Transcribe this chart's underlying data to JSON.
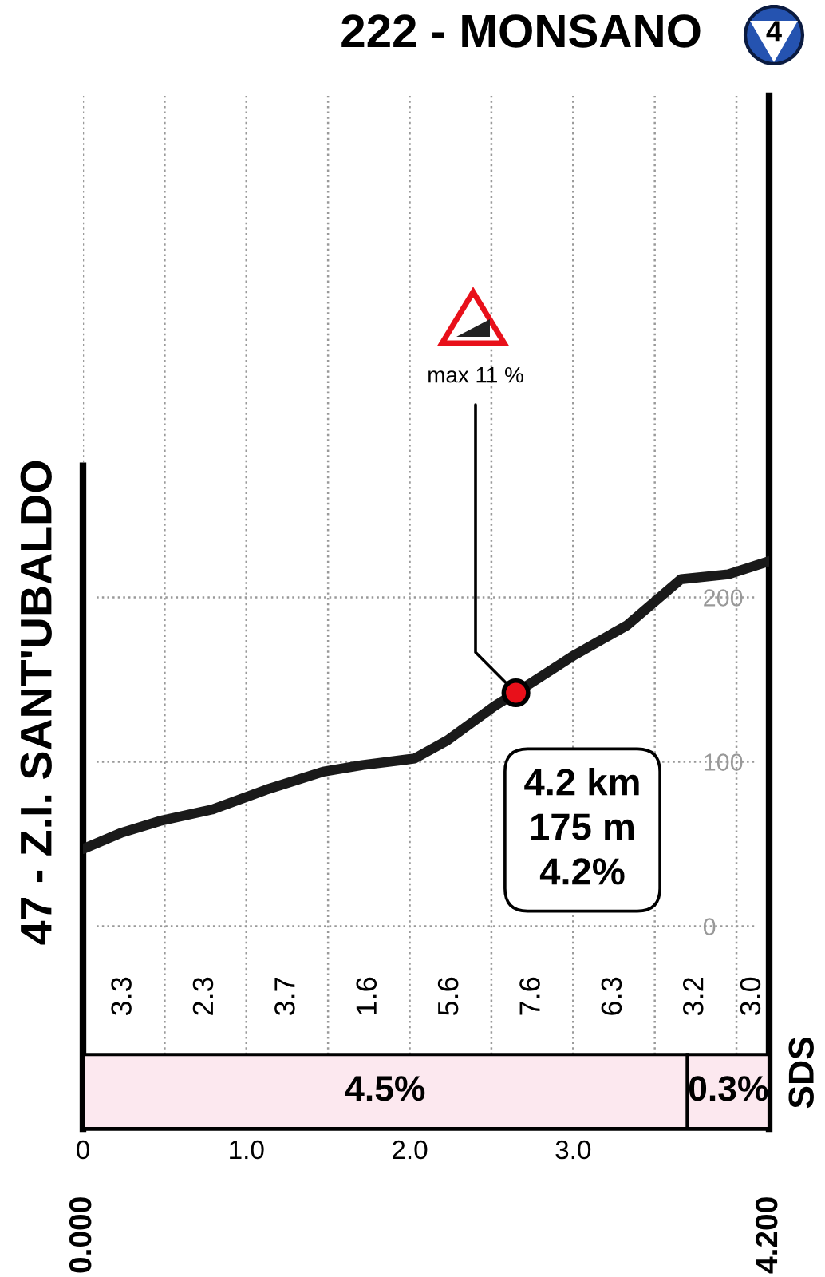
{
  "chart_data": {
    "type": "line",
    "color": "#1a1a1a",
    "line_style": "solid",
    "x": [
      0,
      0.24,
      0.47,
      0.79,
      1.12,
      1.47,
      1.71,
      2.03,
      2.23,
      2.52,
      2.65,
      3.01,
      3.33,
      3.66,
      3.95,
      4.2
    ],
    "values": [
      47,
      57,
      64,
      71,
      83,
      94,
      98,
      102,
      113,
      134,
      142,
      165,
      183,
      211,
      214,
      222
    ],
    "xlim": [
      0,
      4.2
    ],
    "ylim": [
      -123,
      505
    ],
    "xticks": [
      {
        "value": 0,
        "label": "0"
      },
      {
        "value": 0.5,
        "label": null
      },
      {
        "value": 1.0,
        "label": "1.0"
      },
      {
        "value": 1.5,
        "label": null
      },
      {
        "value": 2.0,
        "label": "2.0"
      },
      {
        "value": 2.5,
        "label": null
      },
      {
        "value": 3.0,
        "label": "3.0"
      },
      {
        "value": 3.5,
        "label": null
      },
      {
        "value": 4.0,
        "label": null
      }
    ],
    "yticks": [
      0,
      100,
      200
    ],
    "grid": true,
    "bands": [
      {
        "axis": "x",
        "from": 0,
        "to": 3.7,
        "label": "4.5%",
        "color": "#fce8ef"
      },
      {
        "axis": "x",
        "from": 3.7,
        "to": 4.2,
        "label": "0.3%",
        "color": "#fce8ef"
      }
    ],
    "annotations": [
      "222 - MONSANO",
      "47 - Z.I. SANT'UBALDO",
      {
        "text": "max 11 %",
        "x": 2.65,
        "y": 142
      },
      "4.2 km\n175 m\n4.2%",
      "4",
      "SDS",
      {
        "text": "0.000",
        "x": 0,
        "y": -123
      },
      {
        "text": "4.200",
        "x": 4.2,
        "y": -123
      },
      "3.3",
      "2.3",
      "3.7",
      "1.6",
      "5.6",
      "7.6",
      "6.3",
      "3.2",
      "3.0"
    ]
  }
}
